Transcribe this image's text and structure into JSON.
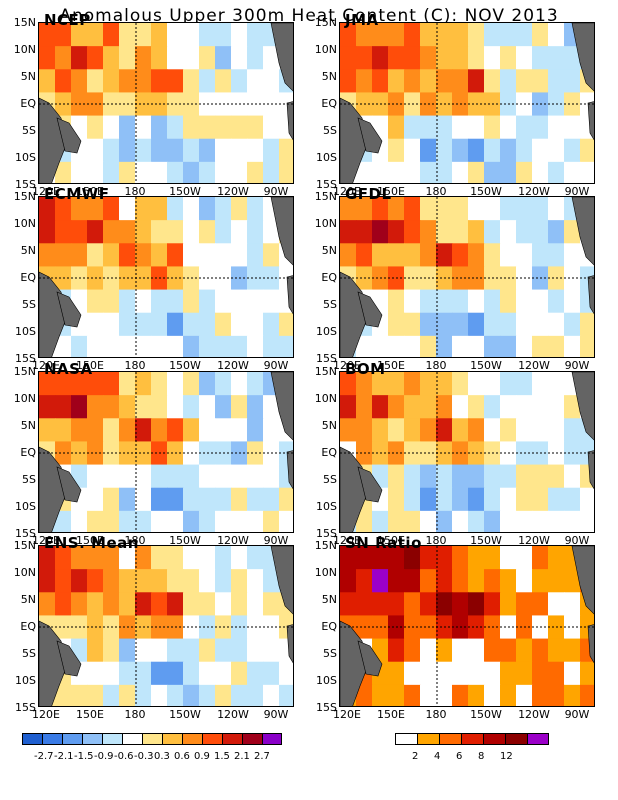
{
  "title": "Anomalous Upper 300m Heat Content (C): NOV 2013",
  "lat_labels": [
    "15N",
    "10N",
    "5N",
    "EQ",
    "5S",
    "10S",
    "15S"
  ],
  "lon_labels": [
    "120E",
    "150E",
    "180",
    "150W",
    "120W",
    "90W"
  ],
  "panels": [
    {
      "label": "NCEP"
    },
    {
      "label": "JMA"
    },
    {
      "label": "ECMWF"
    },
    {
      "label": "GFDL"
    },
    {
      "label": "NASA"
    },
    {
      "label": "BOM"
    },
    {
      "label": "ENS. Mean"
    },
    {
      "label": "SN Ratio"
    }
  ],
  "anomaly_colorbar": {
    "colors": [
      "#1f5fd0",
      "#3a7be6",
      "#5f9cf0",
      "#8fc0f7",
      "#bfe6fb",
      "#ffffff",
      "#ffe68c",
      "#ffbf3f",
      "#ff8c1a",
      "#ff4d0a",
      "#d21a0a",
      "#a0001a",
      "#8a00c8"
    ],
    "labels": [
      "-2.7",
      "-2.1",
      "-1.5",
      "-0.9",
      "-0.6",
      "-0.3",
      "0.3",
      "0.6",
      "0.9",
      "1.5",
      "2.1",
      "2.7"
    ]
  },
  "sn_colorbar": {
    "colors": [
      "#ffffff",
      "#ffa500",
      "#ff6a00",
      "#e01e00",
      "#b00000",
      "#8b0000",
      "#9b00c8"
    ],
    "labels": [
      "2",
      "4",
      "6",
      "8",
      "12"
    ]
  }
}
